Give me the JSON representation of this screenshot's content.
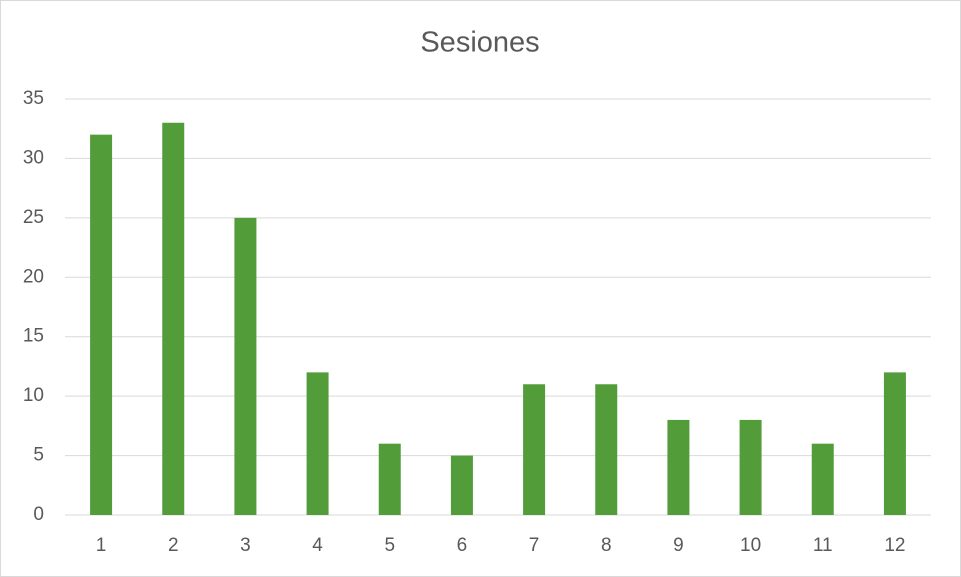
{
  "chart_data": {
    "type": "bar",
    "title": "Sesiones",
    "categories": [
      "1",
      "2",
      "3",
      "4",
      "5",
      "6",
      "7",
      "8",
      "9",
      "10",
      "11",
      "12"
    ],
    "values": [
      32,
      33,
      25,
      12,
      6,
      5,
      11,
      11,
      8,
      8,
      6,
      12
    ],
    "color": "#529d3a",
    "ylim": [
      0,
      35
    ],
    "yticks": [
      0,
      5,
      10,
      15,
      20,
      25,
      30,
      35
    ],
    "grid": true
  }
}
